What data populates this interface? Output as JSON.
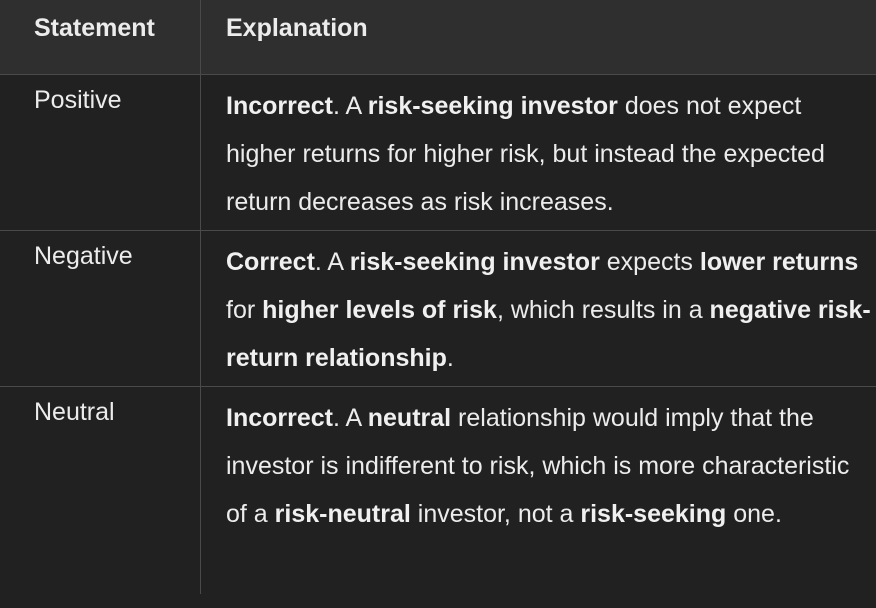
{
  "table": {
    "headers": [
      "Statement",
      "Explanation"
    ],
    "rows": [
      {
        "statement": "Positive",
        "explanation": [
          {
            "t": "Incorrect",
            "b": true
          },
          {
            "t": ". A ",
            "b": false
          },
          {
            "t": "risk-seeking investor",
            "b": true
          },
          {
            "t": " does not expect higher returns for higher risk, but instead the expected return decreases as risk increases.",
            "b": false
          }
        ]
      },
      {
        "statement": "Negative",
        "explanation": [
          {
            "t": "Correct",
            "b": true
          },
          {
            "t": ". A ",
            "b": false
          },
          {
            "t": "risk-seeking investor",
            "b": true
          },
          {
            "t": " expects ",
            "b": false
          },
          {
            "t": "lower returns",
            "b": true
          },
          {
            "t": " for ",
            "b": false
          },
          {
            "t": "higher levels of risk",
            "b": true
          },
          {
            "t": ", which results in a ",
            "b": false
          },
          {
            "t": "negative risk-return relationship",
            "b": true
          },
          {
            "t": ".",
            "b": false
          }
        ]
      },
      {
        "statement": "Neutral",
        "explanation": [
          {
            "t": "Incorrect",
            "b": true
          },
          {
            "t": ". A ",
            "b": false
          },
          {
            "t": "neutral",
            "b": true
          },
          {
            "t": " relationship would imply that the investor is indifferent to risk, which is more characteristic of a ",
            "b": false
          },
          {
            "t": "risk-neutral",
            "b": true
          },
          {
            "t": " investor, not a ",
            "b": false
          },
          {
            "t": "risk-seeking",
            "b": true
          },
          {
            "t": " one.",
            "b": false
          }
        ]
      }
    ]
  }
}
